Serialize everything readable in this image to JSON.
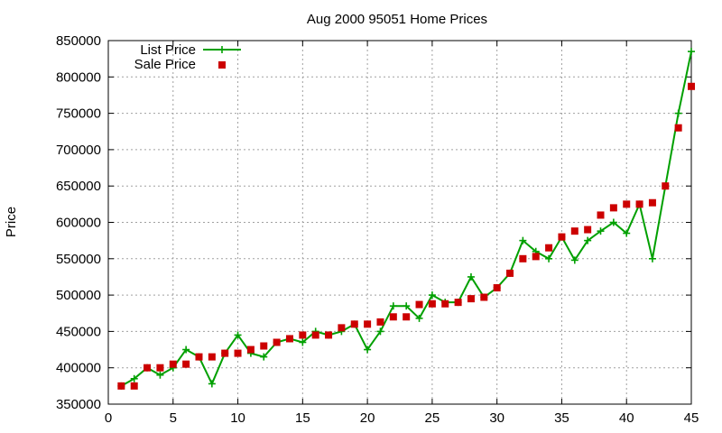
{
  "chart_data": {
    "type": "line",
    "title": "Aug 2000 95051 Home Prices",
    "xlabel": "",
    "ylabel": "Price",
    "xlim": [
      0,
      45
    ],
    "ylim": [
      350000,
      850000
    ],
    "x_ticks": [
      0,
      5,
      10,
      15,
      20,
      25,
      30,
      35,
      40,
      45
    ],
    "y_ticks": [
      350000,
      400000,
      450000,
      500000,
      550000,
      600000,
      650000,
      700000,
      750000,
      800000,
      850000
    ],
    "grid": true,
    "legend_position": "top-left",
    "x": [
      1,
      2,
      3,
      4,
      5,
      6,
      7,
      8,
      9,
      10,
      11,
      12,
      13,
      14,
      15,
      16,
      17,
      18,
      19,
      20,
      21,
      22,
      23,
      24,
      25,
      26,
      27,
      28,
      29,
      30,
      31,
      32,
      33,
      34,
      35,
      36,
      37,
      38,
      39,
      40,
      41,
      42,
      43,
      44,
      45
    ],
    "series": [
      {
        "name": "List Price",
        "style": "line-plus",
        "color": "#00a000",
        "values": [
          375000,
          385000,
          400000,
          390000,
          400000,
          425000,
          415000,
          378000,
          420000,
          445000,
          420000,
          415000,
          435000,
          440000,
          435000,
          450000,
          445000,
          450000,
          460000,
          425000,
          450000,
          485000,
          485000,
          468000,
          500000,
          490000,
          490000,
          525000,
          497000,
          510000,
          530000,
          575000,
          560000,
          550000,
          580000,
          548000,
          575000,
          588000,
          600000,
          585000,
          625000,
          550000,
          650000,
          750000,
          835000
        ]
      },
      {
        "name": "Sale Price",
        "style": "square",
        "color": "#cc0000",
        "values": [
          375000,
          375000,
          400000,
          400000,
          405000,
          405000,
          415000,
          415000,
          420000,
          420000,
          425000,
          430000,
          435000,
          440000,
          445000,
          445000,
          445000,
          455000,
          460000,
          460000,
          463000,
          470000,
          470000,
          487000,
          488000,
          488000,
          490000,
          495000,
          497000,
          510000,
          530000,
          550000,
          553000,
          565000,
          580000,
          588000,
          590000,
          610000,
          620000,
          625000,
          625000,
          627000,
          650000,
          730000,
          787000
        ]
      }
    ]
  }
}
